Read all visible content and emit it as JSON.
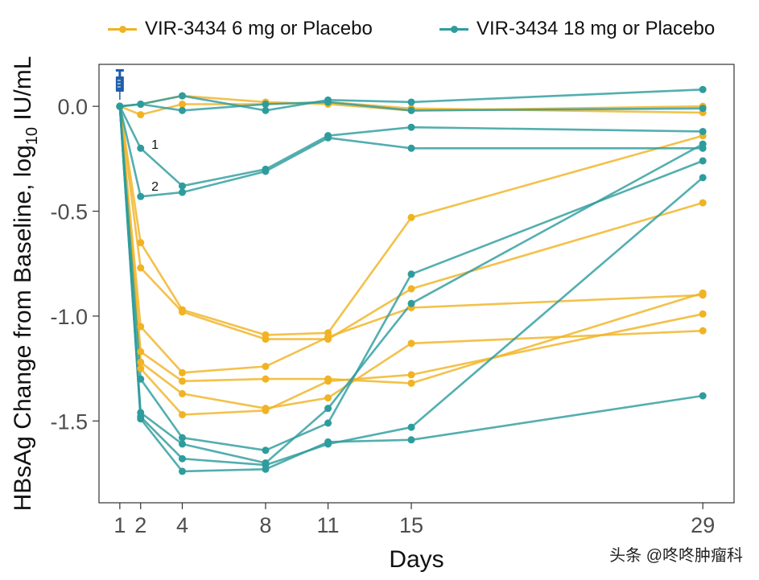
{
  "chart_data": {
    "type": "line",
    "xlabel": "Days",
    "ylabel_main": "HBsAg Change from Baseline, log",
    "ylabel_sub": "10",
    "ylabel_unit": " IU/mL",
    "x_ticks": [
      1,
      2,
      4,
      8,
      11,
      15,
      29
    ],
    "x_tick_labels": [
      "1",
      "2",
      "4",
      "8",
      "11",
      "15",
      "29"
    ],
    "y_ticks": [
      0.0,
      -0.5,
      -1.0,
      -1.5
    ],
    "y_tick_labels": [
      "0.0",
      "-0.5",
      "-1.0",
      "-1.5"
    ],
    "xlim": [
      0,
      30.5
    ],
    "ylim": [
      -1.89,
      0.2
    ],
    "annotations": [
      {
        "text": "1",
        "x": 2.4,
        "y": -0.18
      },
      {
        "text": "2",
        "x": 2.4,
        "y": -0.38
      }
    ],
    "groups": [
      {
        "name": "VIR-3434 6 mg or Placebo",
        "color": "#F0B323",
        "series": [
          {
            "x": [
              1,
              2,
              4,
              8,
              11,
              15,
              29
            ],
            "y": [
              0,
              -0.04,
              0.01,
              0.01,
              0.02,
              -0.01,
              -0.03
            ]
          },
          {
            "x": [
              1,
              2,
              4,
              8,
              11,
              15,
              29
            ],
            "y": [
              0,
              0.01,
              0.05,
              0.02,
              0.01,
              -0.02,
              0.0
            ]
          },
          {
            "x": [
              1,
              2,
              4,
              8,
              11,
              15,
              29
            ],
            "y": [
              0,
              -0.65,
              -0.97,
              -1.09,
              -1.08,
              -0.53,
              -0.14
            ]
          },
          {
            "x": [
              1,
              2,
              4,
              8,
              11,
              15,
              29
            ],
            "y": [
              0,
              -0.77,
              -0.98,
              -1.11,
              -1.11,
              -0.87,
              -0.46
            ]
          },
          {
            "x": [
              1,
              2,
              4,
              8,
              11,
              15,
              29
            ],
            "y": [
              0,
              -1.05,
              -1.27,
              -1.24,
              -1.1,
              -0.96,
              -0.9
            ]
          },
          {
            "x": [
              1,
              2,
              4,
              8,
              11,
              15,
              29
            ],
            "y": [
              0,
              -1.17,
              -1.31,
              -1.3,
              -1.3,
              -1.32,
              -0.89
            ]
          },
          {
            "x": [
              1,
              2,
              4,
              8,
              11,
              15,
              29
            ],
            "y": [
              0,
              -1.22,
              -1.37,
              -1.44,
              -1.39,
              -1.13,
              -1.07
            ]
          },
          {
            "x": [
              1,
              2,
              4,
              8,
              11,
              15,
              29
            ],
            "y": [
              0,
              -1.25,
              -1.47,
              -1.45,
              -1.31,
              -1.28,
              -0.99
            ]
          }
        ]
      },
      {
        "name": "VIR-3434 18 mg or Placebo",
        "color": "#2E9C9D",
        "series": [
          {
            "x": [
              1,
              2,
              4,
              8,
              11,
              15,
              29
            ],
            "y": [
              0,
              0.01,
              0.05,
              -0.02,
              0.03,
              0.02,
              0.08
            ]
          },
          {
            "x": [
              1,
              2,
              4,
              8,
              11,
              15,
              29
            ],
            "y": [
              0,
              0.01,
              -0.02,
              0.01,
              0.02,
              -0.02,
              -0.01
            ]
          },
          {
            "x": [
              1,
              2,
              4,
              8,
              11,
              15,
              29
            ],
            "y": [
              0,
              -0.2,
              -0.38,
              -0.3,
              -0.14,
              -0.1,
              -0.12
            ]
          },
          {
            "x": [
              1,
              2,
              4,
              8,
              11,
              15,
              29
            ],
            "y": [
              0,
              -0.43,
              -0.41,
              -0.31,
              -0.15,
              -0.2,
              -0.2
            ]
          },
          {
            "x": [
              1,
              2,
              4,
              8,
              11,
              15,
              29
            ],
            "y": [
              0,
              -1.3,
              -1.58,
              -1.64,
              -1.51,
              -0.8,
              -0.26
            ]
          },
          {
            "x": [
              1,
              2,
              4,
              8,
              11,
              15,
              29
            ],
            "y": [
              0,
              -1.46,
              -1.61,
              -1.7,
              -1.44,
              -0.94,
              -0.18
            ]
          },
          {
            "x": [
              1,
              2,
              4,
              8,
              11,
              15,
              29
            ],
            "y": [
              0,
              -1.48,
              -1.68,
              -1.71,
              -1.61,
              -1.53,
              -0.34
            ]
          },
          {
            "x": [
              1,
              2,
              4,
              8,
              11,
              15,
              29
            ],
            "y": [
              0,
              -1.49,
              -1.74,
              -1.73,
              -1.6,
              -1.59,
              -1.38
            ]
          }
        ]
      }
    ]
  },
  "watermark": "头条 @咚咚肿瘤科"
}
